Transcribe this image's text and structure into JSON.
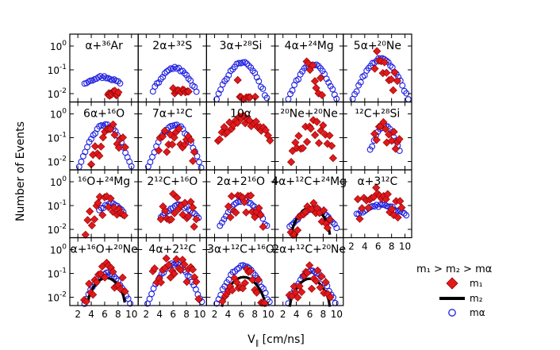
{
  "chart_data": {
    "type": "scatter",
    "ylabel": "Number of Events",
    "xlabel_main": "V",
    "xlabel_sub": "∥",
    "xlabel_unit": " [cm/ns]",
    "x_ticks": [
      "2",
      "4",
      "6",
      "8",
      "10"
    ],
    "x_tick_values": [
      2,
      4,
      6,
      8,
      10
    ],
    "y_ticks": [
      {
        "base": "10",
        "exp": "0",
        "value": 1
      },
      {
        "base": "10",
        "exp": "-1",
        "value": 0.1
      },
      {
        "base": "10",
        "exp": "-2",
        "value": 0.01
      }
    ],
    "xlim": [
      0.8,
      11.0
    ],
    "ylim_log10": [
      -2.35,
      0.5
    ],
    "colors": {
      "m1": "#e0191c",
      "m1_edge": "#8b0000",
      "m2": "#000000",
      "malpha": "#1f1fe0"
    },
    "legend": {
      "title": "m₁ > m₂ > mα",
      "entries": [
        {
          "key": "m1",
          "label": "m₁"
        },
        {
          "key": "m2",
          "label": "m₂"
        },
        {
          "key": "malpha",
          "label": "mα"
        }
      ]
    },
    "panels": [
      {
        "title": "α+³⁶Ar",
        "alpha": [
          3,
          8.3,
          0.05,
          0.028
        ],
        "m1": [
          6.5,
          8,
          0.2,
          4,
          1,
          0.6,
          0.01
        ]
      },
      {
        "title": "2α+³²S",
        "alpha": [
          3,
          9.5,
          0.12,
          0.013
        ],
        "m1": [
          6,
          8.3,
          0.14,
          4,
          0.7,
          0.6,
          0.012
        ]
      },
      {
        "title": "3α+²⁸Si",
        "alpha": [
          2.3,
          9.8,
          0.2,
          0.006
        ],
        "m1": [
          5.5,
          8,
          0.3,
          3,
          1,
          0.8,
          0.006
        ]
      },
      {
        "title": "4α+²⁴Mg",
        "alpha": [
          2.8,
          10,
          0.17,
          0.006
        ],
        "m1": [
          5.5,
          8.5,
          0.18,
          5,
          1.2,
          0.9,
          0.005
        ]
      },
      {
        "title": "5α+²⁰Ne",
        "alpha": [
          2.2,
          10.5,
          0.28,
          0.006
        ],
        "m1": [
          5.5,
          8.8,
          0.22,
          6,
          1.2,
          1,
          0.005
        ]
      },
      {
        "title": "6α+¹⁶O",
        "alpha": [
          2.2,
          10,
          0.35,
          0.006
        ],
        "m1": [
          4,
          9,
          0.12,
          7,
          1.3,
          1,
          0.007
        ]
      },
      {
        "title": "7α+¹²C",
        "alpha": [
          2.3,
          10.2,
          0.35,
          0.006
        ],
        "m1": [
          3.8,
          9.2,
          0.12,
          6.5,
          1.5,
          1,
          0.008
        ]
      },
      {
        "title": "10α",
        "alpha": [],
        "m1": [
          2.5,
          10.2,
          0.55,
          6.3,
          2,
          0.4,
          0.006
        ]
      },
      {
        "title": "²⁰Ne+²⁰Ne",
        "alpha": [],
        "m1": [
          3.2,
          9.5,
          0.18,
          6.5,
          1.6,
          1,
          0.007
        ]
      },
      {
        "title": "¹²C+²⁸Si",
        "alpha": [
          4.8,
          9.2,
          0.3,
          0.03
        ],
        "m1": [
          5.5,
          9.2,
          0.2,
          7,
          1.2,
          1.1,
          0.01
        ]
      },
      {
        "title": "¹⁶O+²⁴Mg",
        "alpha": [
          5.2,
          8.8,
          0.12,
          0.06
        ],
        "m1": [
          3.2,
          9,
          0.12,
          6.5,
          1.5,
          1,
          0.006
        ]
      },
      {
        "title": "2¹²C+¹⁶O",
        "alpha": [
          4.2,
          9.8,
          0.1,
          0.03
        ],
        "m1": [
          4.2,
          9.5,
          0.1,
          6,
          2,
          1.2,
          0.01
        ]
      },
      {
        "title": "2α+2¹⁶O",
        "alpha": [
          2.8,
          9.8,
          0.17,
          0.013
        ],
        "m1": [
          4,
          9.2,
          0.15,
          6,
          1.5,
          1,
          0.008
        ]
      },
      {
        "title": "4α+¹²C+²⁴Mg",
        "alpha": [
          3,
          10,
          0.07,
          0.012
        ],
        "m1": [
          3.2,
          9,
          0.05,
          6.5,
          1.5,
          0.9,
          0.006
        ],
        "m2": [
          3.3,
          9,
          0.085,
          0.006
        ]
      },
      {
        "title": "α+3¹²C",
        "alpha": [
          2.8,
          10.2,
          0.1,
          0.04
        ],
        "m1": [
          3,
          9.5,
          0.25,
          6,
          2,
          1.1,
          0.02
        ]
      },
      {
        "title": "α+¹⁶O+²⁰Ne",
        "alpha": [
          3,
          9.8,
          0.1,
          0.006
        ],
        "m1": [
          3,
          9,
          0.09,
          6.5,
          1.5,
          1,
          0.006
        ],
        "m2": [
          3.5,
          9,
          0.065,
          0.006
        ]
      },
      {
        "title": "4α+2¹²C",
        "alpha": [
          2.2,
          10.3,
          0.25,
          0.006
        ],
        "m1": [
          3,
          9.8,
          0.2,
          6,
          1.8,
          1,
          0.006
        ]
      },
      {
        "title": "3α+¹²C+¹⁶O",
        "alpha": [
          2.3,
          10.2,
          0.2,
          0.006
        ],
        "m1": [
          3.2,
          9.5,
          0.07,
          6.5,
          1.5,
          1,
          0.005
        ],
        "m2": [
          3.1,
          9.6,
          0.07,
          0.004
        ]
      },
      {
        "title": "2α+¹²C+²⁰Ne",
        "alpha": [
          2.8,
          9.8,
          0.12,
          0.006
        ],
        "m1": [
          3,
          9,
          0.07,
          6.5,
          1.5,
          1.1,
          0.006
        ],
        "m2": [
          3,
          9,
          0.06,
          0.004
        ]
      }
    ]
  }
}
